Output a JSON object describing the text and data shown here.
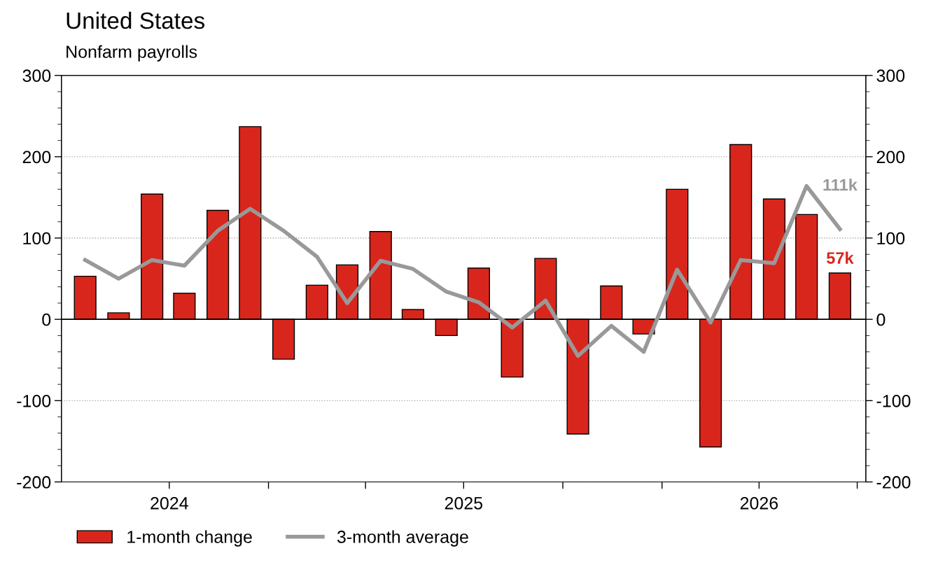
{
  "chart_data": {
    "type": "bar",
    "title": "United States",
    "subtitle": "Nonfarm payrolls",
    "x": [
      "2024-07-15",
      "2024-08-15",
      "2024-09-15",
      "2024-10-15",
      "2024-11-15",
      "2024-12-15",
      "2025-01-15",
      "2025-02-15",
      "2025-03-15",
      "2025-04-15",
      "2025-05-15",
      "2025-06-15",
      "2025-07-15",
      "2025-08-15",
      "2025-09-15",
      "2025-10-15",
      "2025-11-15",
      "2025-12-15",
      "2026-01-15",
      "2026-02-15",
      "2026-03-15",
      "2026-04-15",
      "2026-05-15",
      "2026-06-15"
    ],
    "series": [
      {
        "name": "1-month change",
        "color": "#d9261c",
        "values": [
          53,
          8,
          154,
          32,
          134,
          237,
          -49,
          42,
          67,
          108,
          12,
          -20,
          63,
          -71,
          75,
          -141,
          41,
          -18,
          160,
          -157,
          215,
          148,
          129,
          57
        ]
      },
      {
        "name": "3-month average",
        "type": "line",
        "color": "#999999",
        "values": [
          73,
          50,
          73,
          66,
          109,
          136,
          109,
          77,
          20,
          72,
          62,
          34,
          21,
          -10,
          23,
          -45,
          -8,
          -40,
          61,
          -4,
          73,
          69,
          164,
          111
        ]
      }
    ],
    "annotations": [
      {
        "text": "111k",
        "x": "2026-06-15",
        "y": 111
      },
      {
        "text": "57k",
        "x": "2026-06-15",
        "y": 57
      }
    ],
    "xlim": [
      "2024-06-23",
      "2026-07-09"
    ],
    "xticks": [
      {
        "value": "2024-10-01",
        "label": "2024"
      },
      {
        "value": "2025-01-01",
        "label": null
      },
      {
        "value": "2025-04-01",
        "label": null
      },
      {
        "value": "2025-07-01",
        "label": "2025"
      },
      {
        "value": "2025-10-01",
        "label": null
      },
      {
        "value": "2026-01-01",
        "label": null
      },
      {
        "value": "2026-04-01",
        "label": "2026"
      },
      {
        "value": "2026-07-01",
        "label": null
      }
    ],
    "ylim": [
      -200,
      300
    ],
    "yticks": [
      -200,
      -100,
      0,
      100,
      200,
      300
    ],
    "y2lim": [
      -200,
      300
    ],
    "y2ticks": [
      -200,
      -100,
      0,
      100,
      200,
      300
    ],
    "grid": "y",
    "legend": "bottom"
  }
}
